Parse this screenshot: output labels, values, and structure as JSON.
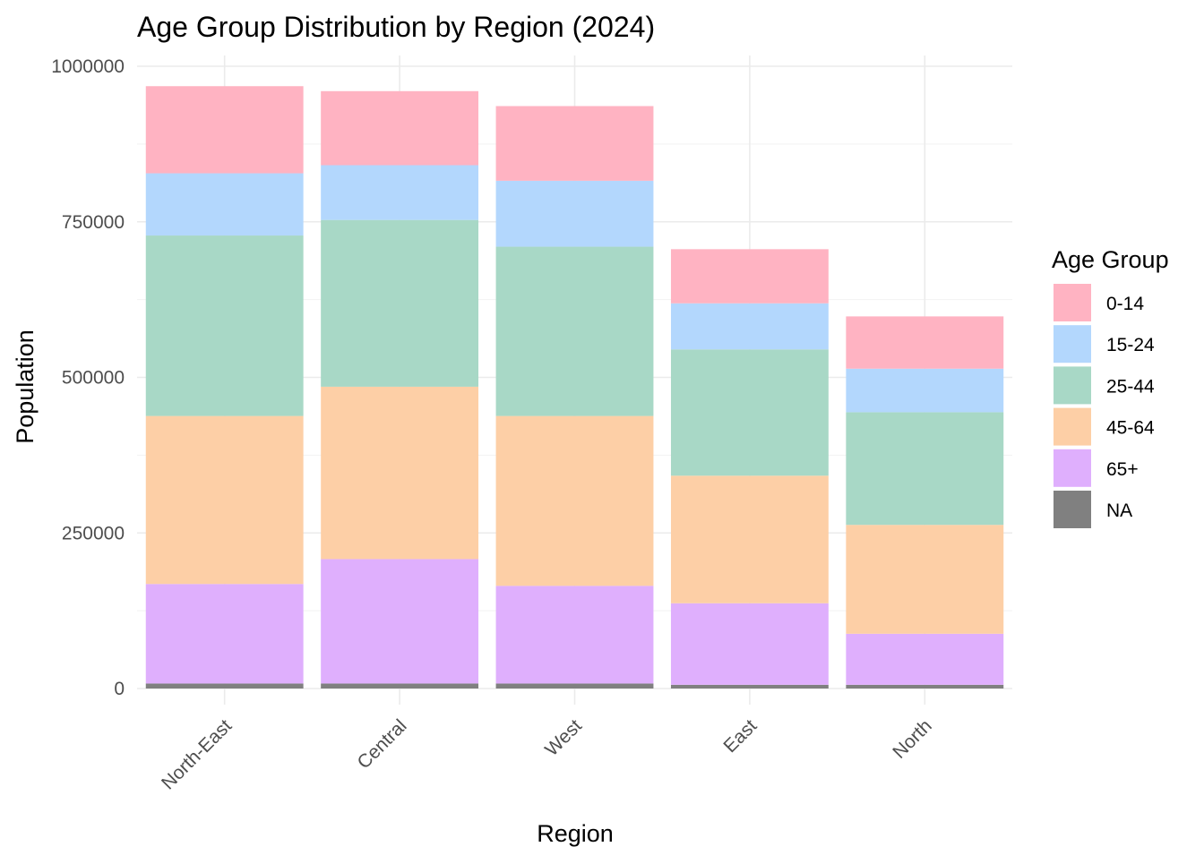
{
  "chart_data": {
    "type": "bar",
    "stacked": true,
    "title": "Age Group Distribution by Region (2024)",
    "xlabel": "Region",
    "ylabel": "Population",
    "categories": [
      "North-East",
      "Central",
      "West",
      "East",
      "North"
    ],
    "ylim": [
      0,
      1000000
    ],
    "yticks": [
      0,
      250000,
      500000,
      750000,
      1000000
    ],
    "ytick_labels": [
      "0",
      "250000",
      "500000",
      "750000",
      "1000000"
    ],
    "grid": true,
    "legend": {
      "title": "Age Group",
      "position": "right"
    },
    "series": [
      {
        "name": "NA",
        "color": "#808080",
        "values": [
          8000,
          8000,
          8000,
          6000,
          6000
        ]
      },
      {
        "name": "65+",
        "color": "#DFAFFD",
        "values": [
          160000,
          200000,
          157000,
          131000,
          82000
        ]
      },
      {
        "name": "45-64",
        "color": "#FDCFA6",
        "values": [
          270000,
          277000,
          273000,
          205000,
          175000
        ]
      },
      {
        "name": "25-44",
        "color": "#A8D8C6",
        "values": [
          290000,
          268000,
          272000,
          203000,
          181000
        ]
      },
      {
        "name": "15-24",
        "color": "#B3D7FD",
        "values": [
          100000,
          88000,
          106000,
          74000,
          70000
        ]
      },
      {
        "name": "0-14",
        "color": "#FFB3C2",
        "values": [
          140000,
          119000,
          120000,
          87000,
          84000
        ]
      }
    ],
    "legend_order": [
      "0-14",
      "15-24",
      "25-44",
      "45-64",
      "65+",
      "NA"
    ]
  }
}
